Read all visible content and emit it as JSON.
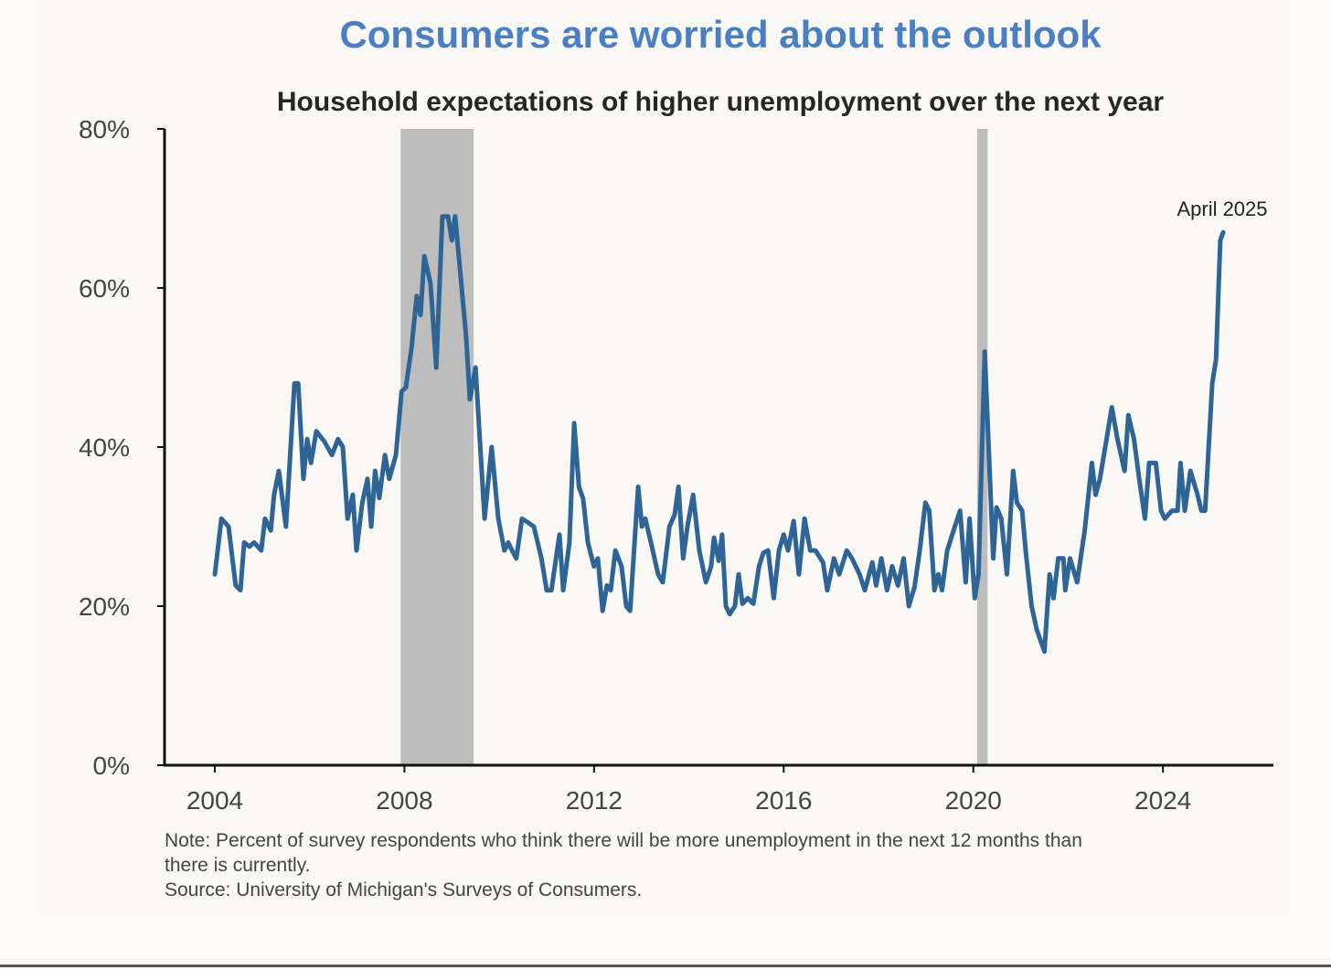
{
  "chart_data": {
    "type": "line",
    "title": "Consumers are worried about the outlook",
    "subtitle": "Household expectations of higher unemployment over the next year",
    "xlabel": "",
    "ylabel": "",
    "xlim": [
      2002.94,
      2026.33
    ],
    "ylim": [
      0,
      80
    ],
    "x_ticks": [
      2004,
      2008,
      2012,
      2016,
      2020,
      2024
    ],
    "x_tick_labels": [
      "2004",
      "2008",
      "2012",
      "2016",
      "2020",
      "2024"
    ],
    "y_ticks": [
      0,
      20,
      40,
      60,
      80
    ],
    "y_tick_labels": [
      "0%",
      "20%",
      "40%",
      "60%",
      "80%"
    ],
    "grid": false,
    "line_color": "#2f6497",
    "recession_color": "#bdbdbd",
    "recessions": [
      [
        2007.92,
        2009.46
      ],
      [
        2020.08,
        2020.3
      ]
    ],
    "annotation": {
      "text": "April 2025",
      "x": 2025.27,
      "y": 67
    },
    "note": "Note: Percent of survey respondents who think there will be more unemployment in the next 12 months than",
    "note_line2": "there is currently.",
    "source": "Source: University of Michigan's Surveys of Consumers.",
    "series": [
      {
        "name": "Household expectations of higher unemployment",
        "points": [
          [
            2004.0,
            24
          ],
          [
            2004.14,
            31
          ],
          [
            2004.29,
            30
          ],
          [
            2004.44,
            22.6
          ],
          [
            2004.54,
            22
          ],
          [
            2004.62,
            28
          ],
          [
            2004.73,
            27.5
          ],
          [
            2004.83,
            28
          ],
          [
            2004.98,
            27
          ],
          [
            2005.06,
            31
          ],
          [
            2005.18,
            29.5
          ],
          [
            2005.25,
            34
          ],
          [
            2005.35,
            37
          ],
          [
            2005.5,
            30
          ],
          [
            2005.68,
            48
          ],
          [
            2005.76,
            48
          ],
          [
            2005.87,
            36
          ],
          [
            2005.95,
            41
          ],
          [
            2006.03,
            38
          ],
          [
            2006.14,
            42
          ],
          [
            2006.31,
            40.7
          ],
          [
            2006.47,
            39
          ],
          [
            2006.6,
            41
          ],
          [
            2006.7,
            40
          ],
          [
            2006.8,
            31
          ],
          [
            2006.91,
            34
          ],
          [
            2006.99,
            27
          ],
          [
            2007.11,
            33
          ],
          [
            2007.22,
            36
          ],
          [
            2007.3,
            30
          ],
          [
            2007.38,
            37
          ],
          [
            2007.47,
            33.6
          ],
          [
            2007.59,
            39
          ],
          [
            2007.68,
            36
          ],
          [
            2007.82,
            39
          ],
          [
            2007.94,
            47
          ],
          [
            2008.03,
            47.5
          ],
          [
            2008.15,
            52.5
          ],
          [
            2008.26,
            59
          ],
          [
            2008.34,
            56.6
          ],
          [
            2008.42,
            64
          ],
          [
            2008.55,
            60.6
          ],
          [
            2008.67,
            50
          ],
          [
            2008.8,
            69
          ],
          [
            2008.92,
            69
          ],
          [
            2009.0,
            66
          ],
          [
            2009.07,
            69
          ],
          [
            2009.3,
            54
          ],
          [
            2009.38,
            46
          ],
          [
            2009.5,
            50
          ],
          [
            2009.61,
            39
          ],
          [
            2009.69,
            31
          ],
          [
            2009.84,
            40
          ],
          [
            2009.98,
            31
          ],
          [
            2010.11,
            27
          ],
          [
            2010.19,
            28
          ],
          [
            2010.27,
            27
          ],
          [
            2010.36,
            26
          ],
          [
            2010.48,
            31
          ],
          [
            2010.61,
            30.5
          ],
          [
            2010.73,
            30
          ],
          [
            2010.89,
            26
          ],
          [
            2011.0,
            22
          ],
          [
            2011.1,
            22
          ],
          [
            2011.27,
            29
          ],
          [
            2011.35,
            22
          ],
          [
            2011.48,
            28
          ],
          [
            2011.58,
            43
          ],
          [
            2011.68,
            35
          ],
          [
            2011.77,
            33.5
          ],
          [
            2011.87,
            28
          ],
          [
            2012.0,
            25
          ],
          [
            2012.08,
            26
          ],
          [
            2012.18,
            19.4
          ],
          [
            2012.27,
            22.6
          ],
          [
            2012.35,
            22
          ],
          [
            2012.45,
            27
          ],
          [
            2012.58,
            25
          ],
          [
            2012.68,
            20
          ],
          [
            2012.76,
            19.4
          ],
          [
            2012.93,
            35
          ],
          [
            2013.01,
            30
          ],
          [
            2013.08,
            31
          ],
          [
            2013.2,
            28
          ],
          [
            2013.35,
            24
          ],
          [
            2013.45,
            23
          ],
          [
            2013.59,
            30
          ],
          [
            2013.7,
            31.5
          ],
          [
            2013.78,
            35
          ],
          [
            2013.88,
            26
          ],
          [
            2013.97,
            30
          ],
          [
            2014.09,
            34
          ],
          [
            2014.22,
            27
          ],
          [
            2014.36,
            23
          ],
          [
            2014.47,
            25
          ],
          [
            2014.53,
            28.6
          ],
          [
            2014.63,
            25.7
          ],
          [
            2014.7,
            29
          ],
          [
            2014.78,
            20
          ],
          [
            2014.86,
            19
          ],
          [
            2014.97,
            20
          ],
          [
            2015.05,
            24
          ],
          [
            2015.13,
            20.3
          ],
          [
            2015.24,
            21
          ],
          [
            2015.36,
            20.3
          ],
          [
            2015.48,
            25
          ],
          [
            2015.57,
            26.7
          ],
          [
            2015.67,
            27
          ],
          [
            2015.79,
            21
          ],
          [
            2015.9,
            27
          ],
          [
            2016.0,
            29
          ],
          [
            2016.09,
            27
          ],
          [
            2016.21,
            30.7
          ],
          [
            2016.32,
            24
          ],
          [
            2016.44,
            31
          ],
          [
            2016.56,
            27
          ],
          [
            2016.67,
            27
          ],
          [
            2016.83,
            25.5
          ],
          [
            2016.92,
            22
          ],
          [
            2017.06,
            26
          ],
          [
            2017.17,
            24
          ],
          [
            2017.33,
            27
          ],
          [
            2017.44,
            26
          ],
          [
            2017.6,
            24
          ],
          [
            2017.71,
            22
          ],
          [
            2017.87,
            25.5
          ],
          [
            2017.95,
            22.6
          ],
          [
            2018.06,
            26
          ],
          [
            2018.18,
            22
          ],
          [
            2018.29,
            25
          ],
          [
            2018.41,
            22.6
          ],
          [
            2018.53,
            26
          ],
          [
            2018.64,
            20
          ],
          [
            2018.76,
            22.4
          ],
          [
            2018.87,
            27
          ],
          [
            2018.99,
            33
          ],
          [
            2019.07,
            32
          ],
          [
            2019.18,
            22
          ],
          [
            2019.26,
            24
          ],
          [
            2019.34,
            22
          ],
          [
            2019.45,
            27
          ],
          [
            2019.61,
            30
          ],
          [
            2019.72,
            32
          ],
          [
            2019.84,
            23
          ],
          [
            2019.92,
            31
          ],
          [
            2020.03,
            21
          ],
          [
            2020.11,
            24
          ],
          [
            2020.24,
            52
          ],
          [
            2020.42,
            26
          ],
          [
            2020.49,
            32.4
          ],
          [
            2020.59,
            31
          ],
          [
            2020.71,
            24
          ],
          [
            2020.84,
            37
          ],
          [
            2020.92,
            33
          ],
          [
            2021.03,
            32
          ],
          [
            2021.11,
            26.6
          ],
          [
            2021.23,
            20
          ],
          [
            2021.34,
            17
          ],
          [
            2021.5,
            14.3
          ],
          [
            2021.61,
            24
          ],
          [
            2021.69,
            21
          ],
          [
            2021.79,
            26
          ],
          [
            2021.9,
            26
          ],
          [
            2021.94,
            22
          ],
          [
            2022.04,
            26
          ],
          [
            2022.19,
            23
          ],
          [
            2022.35,
            29.5
          ],
          [
            2022.5,
            38
          ],
          [
            2022.58,
            34
          ],
          [
            2022.67,
            36
          ],
          [
            2022.81,
            41
          ],
          [
            2022.92,
            45
          ],
          [
            2023.04,
            41
          ],
          [
            2023.19,
            37
          ],
          [
            2023.27,
            44
          ],
          [
            2023.39,
            41
          ],
          [
            2023.5,
            36
          ],
          [
            2023.62,
            31
          ],
          [
            2023.71,
            38
          ],
          [
            2023.85,
            38
          ],
          [
            2023.96,
            32
          ],
          [
            2024.04,
            31
          ],
          [
            2024.19,
            32
          ],
          [
            2024.31,
            32
          ],
          [
            2024.37,
            38
          ],
          [
            2024.46,
            32
          ],
          [
            2024.58,
            37
          ],
          [
            2024.73,
            34
          ],
          [
            2024.81,
            32
          ],
          [
            2024.89,
            32
          ],
          [
            2025.04,
            48
          ],
          [
            2025.12,
            51
          ],
          [
            2025.21,
            66
          ],
          [
            2025.27,
            67
          ]
        ]
      }
    ]
  }
}
